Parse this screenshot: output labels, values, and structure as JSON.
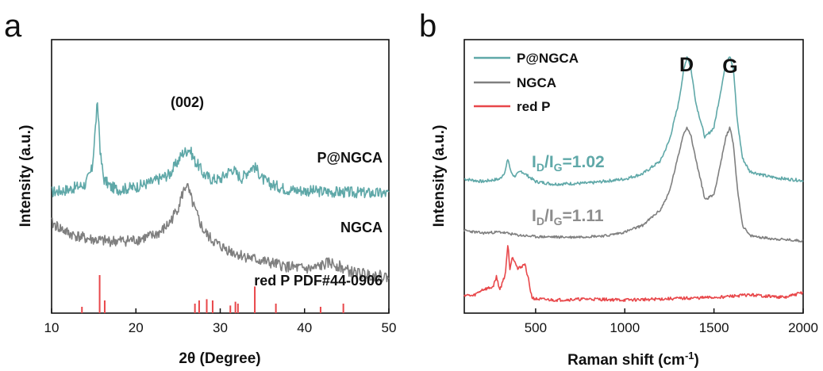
{
  "chart_data": [
    {
      "type": "line",
      "panel_label": "a",
      "xlabel": "2θ (Degree)",
      "ylabel": "Intensity (a.u.)",
      "xlim": [
        10,
        50
      ],
      "xticks": [
        10,
        20,
        30,
        40,
        50
      ],
      "grid": false,
      "annotations": [
        "(002)"
      ],
      "series": [
        {
          "name": "P@NGCA",
          "color": "#5fa8a8",
          "x": [
            10,
            12,
            14,
            14.8,
            15.2,
            15.4,
            15.6,
            15.8,
            16.2,
            17,
            18,
            20,
            22,
            24,
            25,
            25.5,
            26,
            26.3,
            26.6,
            27,
            27.5,
            28,
            29,
            30,
            31,
            31.5,
            32,
            32.5,
            33,
            33.5,
            34,
            34.5,
            35,
            36,
            37,
            38,
            40,
            42,
            44,
            46,
            48,
            50
          ],
          "y": [
            2.35,
            2.4,
            2.5,
            2.8,
            3.6,
            4.05,
            3.7,
            3.05,
            2.6,
            2.45,
            2.4,
            2.45,
            2.55,
            2.7,
            2.95,
            3.1,
            3.15,
            3.2,
            3.1,
            2.95,
            2.85,
            2.7,
            2.6,
            2.6,
            2.75,
            2.8,
            2.7,
            2.62,
            2.7,
            2.8,
            2.85,
            2.75,
            2.6,
            2.5,
            2.45,
            2.4,
            2.38,
            2.36,
            2.35,
            2.34,
            2.33,
            2.32
          ]
        },
        {
          "name": "NGCA",
          "color": "#7f7f7f",
          "x": [
            10,
            12,
            14,
            16,
            18,
            20,
            22,
            23,
            24,
            25,
            25.5,
            26,
            26.3,
            26.6,
            27,
            27.5,
            28,
            29,
            30,
            32,
            34,
            36,
            38,
            40,
            41,
            42,
            43,
            44,
            45,
            46,
            48,
            50
          ],
          "y": [
            1.75,
            1.55,
            1.45,
            1.4,
            1.4,
            1.42,
            1.5,
            1.58,
            1.75,
            2.05,
            2.3,
            2.5,
            2.35,
            2.2,
            2.0,
            1.8,
            1.6,
            1.42,
            1.3,
            1.15,
            1.05,
            0.97,
            0.9,
            0.86,
            0.86,
            0.92,
            0.98,
            0.92,
            0.83,
            0.78,
            0.74,
            0.7
          ]
        },
        {
          "name": "red P PDF#44-0906",
          "type": "sticks",
          "color": "#e8474a",
          "x": [
            13.6,
            15.7,
            16.3,
            27.0,
            27.5,
            28.4,
            29.1,
            31.2,
            31.8,
            32.1,
            34.1,
            36.6,
            41.9,
            44.6
          ],
          "y": [
            0.1,
            0.6,
            0.2,
            0.15,
            0.2,
            0.22,
            0.2,
            0.12,
            0.18,
            0.15,
            0.42,
            0.15,
            0.1,
            0.15
          ]
        }
      ]
    },
    {
      "type": "line",
      "panel_label": "b",
      "xlabel": "Raman shift (cm",
      "xlabel_sup": "-1",
      "xlabel_end": ")",
      "ylabel": "Intensity (a.u.)",
      "xlim": [
        100,
        2000
      ],
      "xticks": [
        500,
        1000,
        1500,
        2000
      ],
      "grid": false,
      "legend": "top-left",
      "peak_labels": [
        "D",
        "G"
      ],
      "ratio_labels": [
        {
          "I": "I",
          "D": "D",
          "slash": "/",
          "I2": "I",
          "G": "G",
          "value": "=1.02",
          "color": "#5fa8a8"
        },
        {
          "I": "I",
          "D": "D",
          "slash": "/",
          "I2": "I",
          "G": "G",
          "value": "=1.11",
          "color": "#8c8c8c"
        }
      ],
      "series": [
        {
          "name": "P@NGCA",
          "color": "#5fa8a8",
          "x": [
            100,
            200,
            300,
            330,
            345,
            360,
            380,
            420,
            460,
            500,
            600,
            800,
            1000,
            1100,
            1200,
            1250,
            1300,
            1330,
            1350,
            1370,
            1400,
            1450,
            1500,
            1540,
            1570,
            1590,
            1610,
            1630,
            1660,
            1700,
            1800,
            1900,
            2000
          ],
          "y": [
            2.45,
            2.4,
            2.45,
            2.6,
            2.85,
            2.6,
            2.5,
            2.6,
            2.5,
            2.4,
            2.35,
            2.37,
            2.45,
            2.55,
            2.8,
            3.2,
            3.9,
            4.55,
            4.85,
            4.6,
            3.9,
            3.25,
            3.45,
            4.2,
            4.75,
            4.85,
            4.55,
            3.6,
            2.85,
            2.6,
            2.5,
            2.45,
            2.42
          ]
        },
        {
          "name": "NGCA",
          "color": "#7f7f7f",
          "x": [
            100,
            200,
            300,
            400,
            500,
            700,
            900,
            1000,
            1100,
            1200,
            1250,
            1300,
            1330,
            1350,
            1370,
            1400,
            1450,
            1500,
            1540,
            1570,
            1590,
            1610,
            1630,
            1660,
            1700,
            1800,
            1900,
            2000
          ],
          "y": [
            1.45,
            1.4,
            1.42,
            1.36,
            1.33,
            1.32,
            1.35,
            1.42,
            1.55,
            1.85,
            2.2,
            2.9,
            3.35,
            3.45,
            3.3,
            2.8,
            2.05,
            2.15,
            2.8,
            3.3,
            3.45,
            3.1,
            2.3,
            1.55,
            1.35,
            1.3,
            1.27,
            1.25
          ]
        },
        {
          "name": "red P",
          "color": "#e8474a",
          "x": [
            100,
            150,
            200,
            260,
            280,
            300,
            330,
            345,
            355,
            370,
            385,
            400,
            420,
            440,
            460,
            470,
            480,
            500,
            600,
            800,
            1000,
            1200,
            1500,
            1700,
            1900,
            2000
          ],
          "y": [
            0.2,
            0.18,
            0.3,
            0.35,
            0.55,
            0.3,
            0.6,
            1.2,
            0.7,
            0.95,
            0.85,
            0.7,
            0.75,
            0.8,
            0.5,
            0.3,
            0.15,
            0.12,
            0.1,
            0.12,
            0.1,
            0.12,
            0.15,
            0.2,
            0.15,
            0.25
          ]
        }
      ]
    }
  ]
}
